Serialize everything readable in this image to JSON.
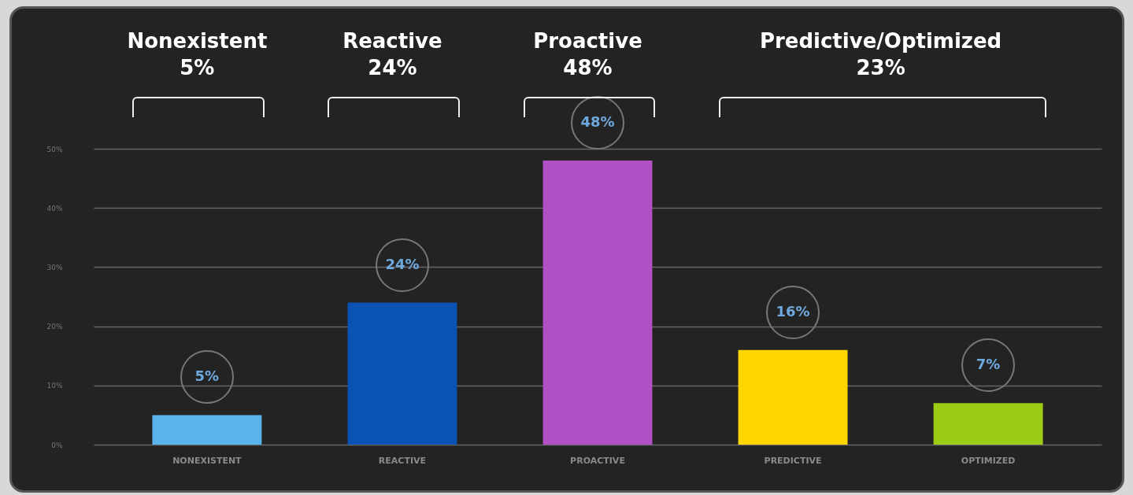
{
  "chart_data": {
    "type": "bar",
    "categories": [
      "NONEXISTENT",
      "REACTIVE",
      "PROACTIVE",
      "PREDICTIVE",
      "OPTIMIZED"
    ],
    "values": [
      5,
      24,
      48,
      16,
      7
    ],
    "colors": [
      "#5ab4ec",
      "#0a52b4",
      "#b050c4",
      "#ffd600",
      "#9ccc14"
    ],
    "value_labels": [
      "5%",
      "24%",
      "48%",
      "16%",
      "7%"
    ],
    "ylim": [
      0,
      50
    ],
    "yticks": [
      {
        "value": 0,
        "label": "0%"
      },
      {
        "value": 10,
        "label": "10%"
      },
      {
        "value": 20,
        "label": "20%"
      },
      {
        "value": 30,
        "label": "30%"
      },
      {
        "value": 40,
        "label": "40%"
      },
      {
        "value": 50,
        "label": "50%"
      }
    ],
    "grid": "y",
    "annotations": [
      "Nonexistent\n5%",
      "Reactive\n24%",
      "Proactive\n48%",
      "Predictive/Optimized\n23%"
    ]
  }
}
